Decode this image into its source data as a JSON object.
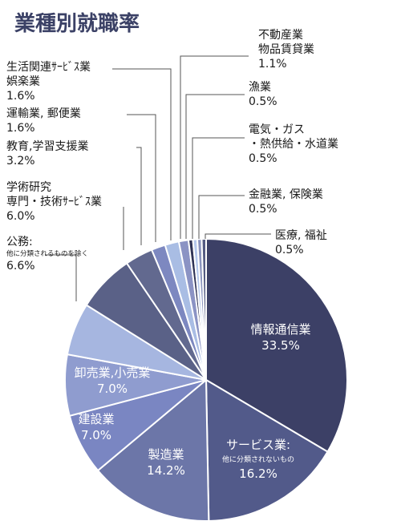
{
  "chart_data": {
    "type": "pie",
    "title": "業種別就職率",
    "unit": "%",
    "start": "12 o'clock",
    "direction": "clockwise",
    "slices": [
      {
        "label": "情報通信業",
        "sub": "",
        "value": 33.5,
        "display": "33.5%",
        "color": "#3c4066"
      },
      {
        "label": "サービス業:",
        "sub": "他に分類されないもの",
        "value": 16.2,
        "display": "16.2%",
        "color": "#525a8a"
      },
      {
        "label": "製造業",
        "sub": "",
        "value": 14.2,
        "display": "14.2%",
        "color": "#6c76a8"
      },
      {
        "label": "建設業",
        "sub": "",
        "value": 7.0,
        "display": "7.0%",
        "color": "#7a86c2"
      },
      {
        "label": "卸売業,小売業",
        "sub": "",
        "value": 7.0,
        "display": "7.0%",
        "color": "#8f9ccf"
      },
      {
        "label": "学術研究",
        "sub": "",
        "value": 6.0,
        "display": "6.0%",
        "color": "#a6b6e0"
      },
      {
        "label": "公務:",
        "sub": "他に分類されるものを除く",
        "value": 6.6,
        "display": "6.6%",
        "color": "#5a6187"
      },
      {
        "label": "専門・技術ｻｰﾋﾞｽ業",
        "sub": "",
        "value": 0,
        "display": "",
        "color": "#a6b6e0"
      },
      {
        "label": "教育,学習支援業",
        "sub": "",
        "value": 3.2,
        "display": "3.2%",
        "color": "#62698f"
      },
      {
        "label": "運輸業, 郵便業",
        "sub": "",
        "value": 1.6,
        "display": "1.6%",
        "color": "#7d88c0"
      },
      {
        "label": "生活関連ｻｰﾋﾞｽ業",
        "sub": "娯楽業",
        "value": 1.6,
        "display": "1.6%",
        "color": "#a9bde4"
      },
      {
        "label": "不動産業",
        "sub": "物品賃貸業",
        "value": 1.1,
        "display": "1.1%",
        "color": "#8b93c4"
      },
      {
        "label": "漁業",
        "sub": "",
        "value": 0.5,
        "display": "0.5%",
        "color": "#2f3356"
      },
      {
        "label": "電気・ガス",
        "sub": "・熱供給・水道業",
        "value": 0.5,
        "display": "0.5%",
        "color": "#b5c8ec"
      },
      {
        "label": "金融業, 保険業",
        "sub": "",
        "value": 0.5,
        "display": "0.5%",
        "color": "#8a93bd"
      },
      {
        "label": "医療, 福祉",
        "sub": "",
        "value": 0.5,
        "display": "0.5%",
        "color": "#545b82"
      }
    ]
  }
}
